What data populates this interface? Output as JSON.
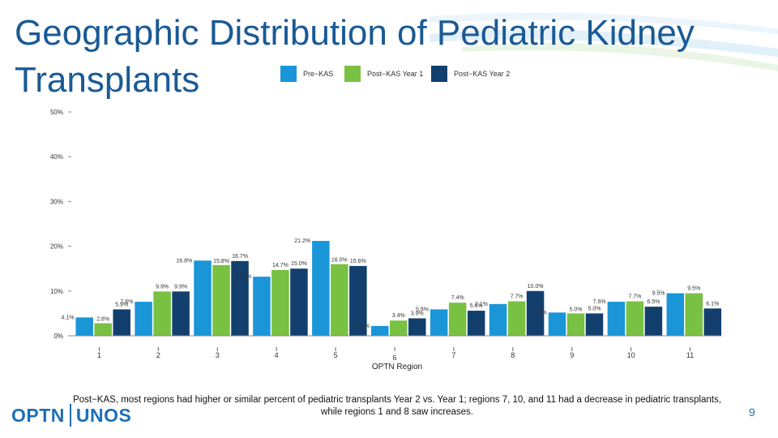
{
  "title": "Geographic Distribution of Pediatric Kidney Transplants",
  "caption": "Post−KAS, most regions had higher or similar percent of pediatric transplants Year 2 vs. Year 1; regions 7, 10, and 11 had a decrease in  pediatric transplants, while regions 1 and 8 saw increases.",
  "page_number": "9",
  "logo": {
    "left": "OPTN",
    "right": "UNOS"
  },
  "colors": {
    "pre": "#1a96d8",
    "year1": "#79c142",
    "year2": "#123f6e",
    "title": "#1a5a95"
  },
  "chart_data": {
    "type": "bar",
    "title": "",
    "xlabel": "OPTN Region",
    "ylabel": "",
    "ylim": [
      0,
      50
    ],
    "yticks": [
      "0%",
      "10%",
      "20%",
      "30%",
      "40%",
      "50%"
    ],
    "ytick_values": [
      0,
      10,
      20,
      30,
      40,
      50
    ],
    "categories": [
      "1",
      "2",
      "3",
      "4",
      "5",
      "6",
      "7",
      "8",
      "9",
      "10",
      "11"
    ],
    "series": [
      {
        "name": "Pre−KAS",
        "color": "#1a96d8",
        "values": [
          4.1,
          7.6,
          16.8,
          13.2,
          21.2,
          2.2,
          5.9,
          7.1,
          5.2,
          7.6,
          9.5
        ],
        "labels": [
          "4.1%",
          "7.6%",
          "16.8%",
          "13.2%",
          "21.2%",
          "2.2%",
          "5.9%",
          "7.1%",
          "5.2%",
          "7.6%",
          "9.5%"
        ]
      },
      {
        "name": "Post−KAS Year 1",
        "color": "#79c142",
        "values": [
          2.8,
          9.9,
          15.8,
          14.7,
          16.0,
          3.4,
          7.4,
          7.7,
          5.0,
          7.7,
          9.5
        ],
        "labels": [
          "2.8%",
          "9.9%",
          "15.8%",
          "14.7%",
          "16.0%",
          "3.4%",
          "7.4%",
          "7.7%",
          "5.0%",
          "7.7%",
          "9.5%"
        ]
      },
      {
        "name": "Post−KAS Year 2",
        "color": "#123f6e",
        "values": [
          5.9,
          9.9,
          16.7,
          15.0,
          15.6,
          3.9,
          5.6,
          10.0,
          5.0,
          6.5,
          6.1
        ],
        "labels": [
          "5.9%",
          "9.9%",
          "16.7%",
          "15.0%",
          "15.6%",
          "3.9%",
          "5.6%",
          "10.0%",
          "5.0%",
          "6.5%",
          "6.1%"
        ]
      }
    ]
  }
}
